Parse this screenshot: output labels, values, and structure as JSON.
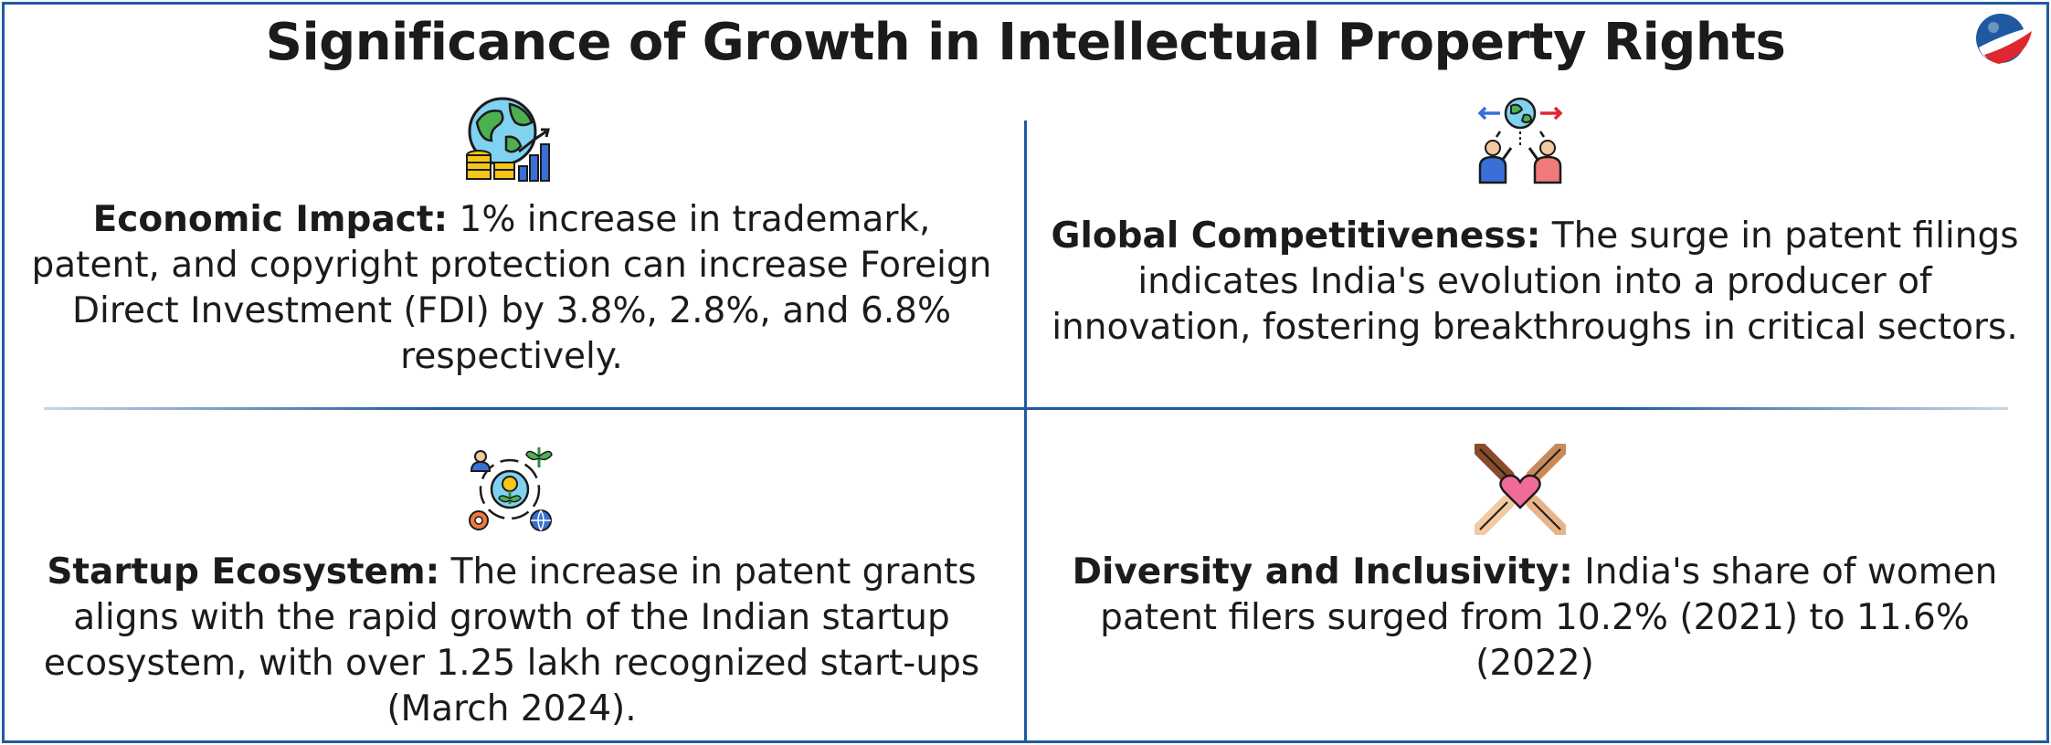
{
  "title": "Significance of Growth in Intellectual Property Rights",
  "logo": {
    "icon": "brand-logo-icon",
    "colors": [
      "#1f5aa0",
      "#e0262f"
    ]
  },
  "cells": [
    {
      "icon": "globe-growth-chart-icon",
      "heading": "Economic Impact:",
      "body": " 1% increase in trademark, patent, and copyright protection can increase Foreign Direct Investment (FDI) by 3.8%, 2.8%, and 6.8% respectively."
    },
    {
      "icon": "global-exchange-people-icon",
      "heading": "Global Competitiveness:",
      "body": " The surge in patent filings indicates India's evolution into a producer of innovation, fostering breakthroughs in critical sectors."
    },
    {
      "icon": "startup-ecosystem-cycle-icon",
      "heading": "Startup Ecosystem:",
      "body": " The increase in patent grants aligns with the rapid growth of the Indian startup ecosystem, with over 1.25 lakh recognized start-ups (March 2024)."
    },
    {
      "icon": "diverse-hands-heart-icon",
      "heading": "Diversity and Inclusivity:",
      "body": " India's share of women patent filers surged from 10.2% (2021) to 11.6%(2022)"
    }
  ],
  "colors": {
    "border": "#1f5aa0",
    "text": "#1b1b1b"
  }
}
